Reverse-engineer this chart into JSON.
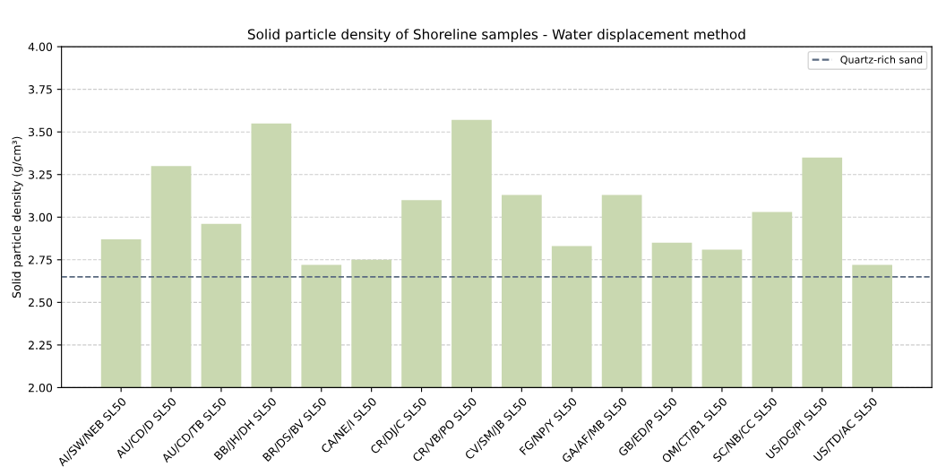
{
  "chart_data": {
    "type": "bar",
    "title": "Solid particle density of Shoreline samples - Water displacement method",
    "ylabel": "Solid particle density (g/cm³)",
    "categories": [
      "AI/SW/NEB SL50",
      "AU/CD/D SL50",
      "AU/CD/TB SL50",
      "BB/JH/DH SL50",
      "BR/DS/BV SL50",
      "CA/NE/I SL50",
      "CR/DJ/C SL50",
      "CR/VB/PO SL50",
      "CV/SM/JB SL50",
      "FG/NP/Y SL50",
      "GA/AF/MB SL50",
      "GB/ED/P SL50",
      "OM/CT/B1 SL50",
      "SC/NB/CC SL50",
      "US/DG/PI SL50",
      "US/TD/AC SL50"
    ],
    "values": [
      2.87,
      3.3,
      2.96,
      3.55,
      2.72,
      2.75,
      3.1,
      3.57,
      3.13,
      2.83,
      3.13,
      2.85,
      2.81,
      3.03,
      3.35,
      2.72
    ],
    "color": "#c9d8b0",
    "ylim": [
      2.0,
      4.0
    ],
    "yticks": [
      {
        "value": 2.0,
        "label": "2.00"
      },
      {
        "value": 2.25,
        "label": "2.25"
      },
      {
        "value": 2.5,
        "label": "2.50"
      },
      {
        "value": 2.75,
        "label": "2.75"
      },
      {
        "value": 3.0,
        "label": "3.00"
      },
      {
        "value": 3.25,
        "label": "3.25"
      },
      {
        "value": 3.5,
        "label": "3.50"
      },
      {
        "value": 3.75,
        "label": "3.75"
      },
      {
        "value": 4.0,
        "label": "4.00"
      }
    ],
    "grid": "y",
    "ref_lines": [
      {
        "axis": "y",
        "value": 2.65,
        "label": "Quartz-rich sand",
        "color": "#5a6a80",
        "line_style": "dashed"
      }
    ],
    "legend": "top right"
  }
}
